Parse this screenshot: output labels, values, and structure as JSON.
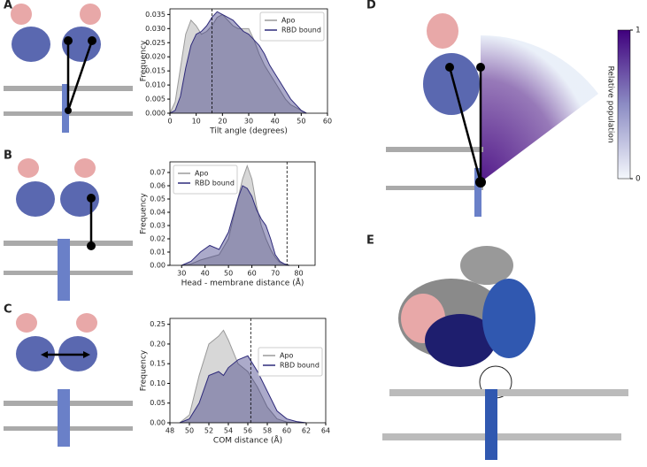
{
  "panel_labels": [
    "A",
    "B",
    "C",
    "D",
    "E"
  ],
  "colorbar": {
    "label": "Relative population",
    "ticks": [
      0,
      1
    ],
    "colors": [
      "#f4f7fc",
      "#8c8cc4",
      "#3f007d"
    ]
  },
  "chart_data": [
    {
      "type": "area",
      "xlabel": "Tilt angle (degrees)",
      "ylabel": "Frequency",
      "legend": "upper right",
      "vline": 16,
      "x": [
        0,
        2,
        4,
        6,
        8,
        10,
        12,
        14,
        16,
        18,
        20,
        22,
        24,
        26,
        28,
        30,
        32,
        34,
        36,
        38,
        40,
        42,
        44,
        46,
        48,
        50,
        52
      ],
      "series": [
        {
          "name": "Apo",
          "color": "#9a9a9a",
          "values": [
            0,
            0.004,
            0.016,
            0.028,
            0.033,
            0.031,
            0.028,
            0.029,
            0.031,
            0.034,
            0.035,
            0.033,
            0.031,
            0.03,
            0.03,
            0.03,
            0.026,
            0.021,
            0.017,
            0.014,
            0.011,
            0.008,
            0.005,
            0.003,
            0.002,
            0.001,
            0
          ]
        },
        {
          "name": "RBD bound",
          "color": "#2e2a7a",
          "values": [
            0,
            0.001,
            0.006,
            0.016,
            0.024,
            0.028,
            0.029,
            0.031,
            0.034,
            0.036,
            0.035,
            0.034,
            0.033,
            0.031,
            0.029,
            0.028,
            0.026,
            0.024,
            0.021,
            0.017,
            0.014,
            0.011,
            0.008,
            0.005,
            0.003,
            0.001,
            0
          ]
        }
      ],
      "xlim": [
        0,
        60
      ],
      "xticks": [
        0,
        10,
        20,
        30,
        40,
        50,
        60
      ],
      "ylim": [
        0,
        0.037
      ],
      "yticks": [
        {
          "value": 0,
          "label": "0.000"
        },
        {
          "value": 0.005,
          "label": "0.005"
        },
        {
          "value": 0.01,
          "label": "0.010"
        },
        {
          "value": 0.015,
          "label": "0.015"
        },
        {
          "value": 0.02,
          "label": "0.020"
        },
        {
          "value": 0.025,
          "label": "0.025"
        },
        {
          "value": 0.03,
          "label": "0.030"
        },
        {
          "value": 0.035,
          "label": "0.035"
        }
      ]
    },
    {
      "type": "area",
      "xlabel": "Head - membrane distance (Å)",
      "ylabel": "Frequency",
      "legend": "upper left",
      "vline": 75,
      "x": [
        30,
        34,
        38,
        42,
        46,
        50,
        54,
        56,
        58,
        60,
        62,
        64,
        66,
        68,
        70,
        72,
        74,
        76
      ],
      "series": [
        {
          "name": "Apo",
          "color": "#9a9a9a",
          "values": [
            0,
            0.001,
            0.004,
            0.006,
            0.008,
            0.02,
            0.05,
            0.065,
            0.075,
            0.065,
            0.045,
            0.03,
            0.02,
            0.012,
            0.006,
            0.002,
            0.001,
            0
          ]
        },
        {
          "name": "RBD bound",
          "color": "#2e2a7a",
          "values": [
            0,
            0.003,
            0.01,
            0.015,
            0.012,
            0.025,
            0.05,
            0.06,
            0.058,
            0.052,
            0.042,
            0.035,
            0.03,
            0.02,
            0.008,
            0.003,
            0.001,
            0
          ]
        }
      ],
      "xlim": [
        25,
        87
      ],
      "xticks": [
        30,
        40,
        50,
        60,
        70,
        80
      ],
      "ylim": [
        0,
        0.078
      ],
      "yticks": [
        {
          "value": 0,
          "label": "0.00"
        },
        {
          "value": 0.01,
          "label": "0.01"
        },
        {
          "value": 0.02,
          "label": "0.02"
        },
        {
          "value": 0.03,
          "label": "0.03"
        },
        {
          "value": 0.04,
          "label": "0.04"
        },
        {
          "value": 0.05,
          "label": "0.05"
        },
        {
          "value": 0.06,
          "label": "0.06"
        },
        {
          "value": 0.07,
          "label": "0.07"
        }
      ]
    },
    {
      "type": "area",
      "xlabel": "COM distance (Å)",
      "ylabel": "Frequency",
      "legend": "center right",
      "vline": 56.3,
      "x": [
        49,
        50,
        51,
        52,
        53,
        53.5,
        54,
        55,
        56,
        57,
        58,
        59,
        60,
        61,
        62
      ],
      "series": [
        {
          "name": "Apo",
          "color": "#9a9a9a",
          "values": [
            0,
            0.02,
            0.12,
            0.2,
            0.22,
            0.235,
            0.21,
            0.15,
            0.13,
            0.09,
            0.04,
            0.01,
            0.002,
            0,
            0
          ]
        },
        {
          "name": "RBD bound",
          "color": "#2e2a7a",
          "values": [
            0,
            0.01,
            0.05,
            0.12,
            0.13,
            0.12,
            0.14,
            0.16,
            0.17,
            0.13,
            0.08,
            0.03,
            0.01,
            0.003,
            0
          ]
        }
      ],
      "xlim": [
        48,
        64
      ],
      "xticks": [
        48,
        50,
        52,
        54,
        56,
        58,
        60,
        62,
        64
      ],
      "ylim": [
        0,
        0.265
      ],
      "yticks": [
        {
          "value": 0,
          "label": "0.00"
        },
        {
          "value": 0.05,
          "label": "0.05"
        },
        {
          "value": 0.1,
          "label": "0.10"
        },
        {
          "value": 0.15,
          "label": "0.15"
        },
        {
          "value": 0.2,
          "label": "0.20"
        },
        {
          "value": 0.25,
          "label": "0.25"
        }
      ]
    }
  ]
}
